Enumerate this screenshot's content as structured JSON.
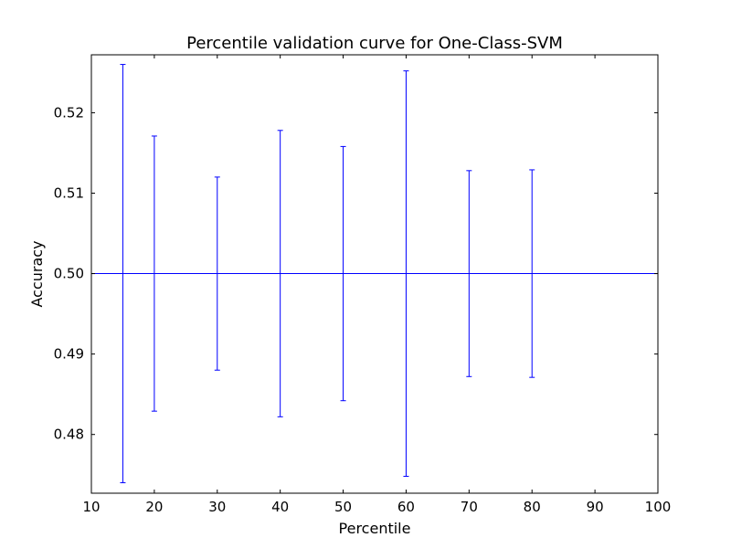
{
  "chart_data": {
    "type": "line",
    "title": "Percentile validation curve for One-Class-SVM",
    "xlabel": "Percentile",
    "ylabel": "Accuracy",
    "xlim": [
      10,
      100
    ],
    "ylim": [
      0.4727,
      0.5272
    ],
    "xticks": [
      10,
      20,
      30,
      40,
      50,
      60,
      70,
      80,
      90,
      100
    ],
    "yticks": [
      0.48,
      0.49,
      0.5,
      0.51,
      0.52
    ],
    "ytick_labels": [
      "0.48",
      "0.49",
      "0.50",
      "0.51",
      "0.52"
    ],
    "grid": false,
    "color": "#0000ff",
    "series": [
      {
        "x": [
          15,
          20,
          30,
          40,
          50,
          60,
          70,
          80
        ],
        "y": [
          0.5,
          0.5,
          0.5,
          0.5,
          0.5,
          0.5,
          0.5,
          0.5
        ],
        "yerr": [
          0.026,
          0.0171,
          0.012,
          0.0178,
          0.0158,
          0.0252,
          0.0128,
          0.0129
        ]
      }
    ]
  }
}
